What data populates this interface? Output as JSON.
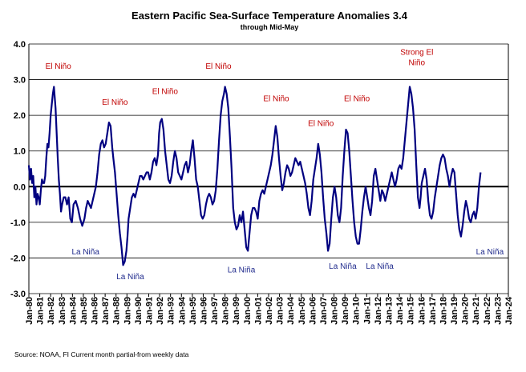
{
  "chart_data": {
    "type": "line",
    "title": "Eastern Pacific Sea-Surface Temperature Anomalies 3.4",
    "subtitle": "through Mid-May",
    "xlabel": "",
    "ylabel": "",
    "ylim": [
      -3.0,
      4.0
    ],
    "yticks": [
      "4.0",
      "3.0",
      "2.0",
      "1.0",
      "0.0",
      "-1.0",
      "-2.0",
      "-3.0"
    ],
    "xticks": [
      "Jan-80",
      "Jan-81",
      "Jan-82",
      "Jan-83",
      "Jan-84",
      "Jan-85",
      "Jan-86",
      "Jan-87",
      "Jan-88",
      "Jan-89",
      "Jan-90",
      "Jan-91",
      "Jan-92",
      "Jan-93",
      "Jan-94",
      "Jan-95",
      "Jan-96",
      "Jan-97",
      "Jan-98",
      "Jan-99",
      "Jan-00",
      "Jan-01",
      "Jan-02",
      "Jan-03",
      "Jan-04",
      "Jan-05",
      "Jan-06",
      "Jan-07",
      "Jan-08",
      "Jan-09",
      "Jan-10",
      "Jan-11",
      "Jan-12",
      "Jan-13",
      "Jan-14",
      "Jan-15",
      "Jan-16",
      "Jan-17",
      "Jan-18",
      "Jan-19",
      "Jan-20",
      "Jan-21",
      "Jan-22",
      "Jan-23",
      "Jan-24"
    ],
    "grid": true,
    "legend": "none",
    "series_color": "#000080",
    "series": [
      {
        "values_x_year": [
          1980.0,
          1980.1,
          1980.2,
          1980.3,
          1980.4,
          1980.5,
          1980.6,
          1980.7,
          1980.8,
          1980.9,
          1981.0,
          1981.1,
          1981.2,
          1981.3,
          1981.4,
          1981.5,
          1981.6,
          1981.7,
          1981.8,
          1981.9,
          1982.0,
          1982.1,
          1982.2,
          1982.3,
          1982.45,
          1982.55,
          1982.65,
          1982.75,
          1982.85,
          1982.95,
          1983.05,
          1983.2,
          1983.35,
          1983.5,
          1983.65,
          1983.8,
          1983.95,
          1984.1,
          1984.3,
          1984.5,
          1984.7,
          1984.9,
          1985.1,
          1985.25,
          1985.4,
          1985.55,
          1985.7,
          1985.85,
          1986.0,
          1986.15,
          1986.3,
          1986.45,
          1986.6,
          1986.75,
          1986.9,
          1987.05,
          1987.2,
          1987.35,
          1987.5,
          1987.65,
          1987.75,
          1987.9,
          1988.05,
          1988.2,
          1988.35,
          1988.5,
          1988.65,
          1988.8,
          1988.95,
          1989.05,
          1989.15,
          1989.3,
          1989.45,
          1989.6,
          1989.75,
          1989.9,
          1990.05,
          1990.2,
          1990.35,
          1990.5,
          1990.65,
          1990.8,
          1990.95,
          1991.1,
          1991.25,
          1991.4,
          1991.55,
          1991.7,
          1991.85,
          1991.95,
          1992.05,
          1992.2,
          1992.35,
          1992.5,
          1992.65,
          1992.8,
          1992.95,
          1993.1,
          1993.25,
          1993.4,
          1993.55,
          1993.7,
          1993.85,
          1994.0,
          1994.15,
          1994.3,
          1994.45,
          1994.6,
          1994.75,
          1994.9,
          1995.05,
          1995.2,
          1995.35,
          1995.5,
          1995.65,
          1995.8,
          1995.95,
          1996.1,
          1996.25,
          1996.4,
          1996.55,
          1996.7,
          1996.85,
          1997.0,
          1997.15,
          1997.3,
          1997.45,
          1997.6,
          1997.75,
          1997.9,
          1998.0,
          1998.15,
          1998.3,
          1998.45,
          1998.6,
          1998.75,
          1998.9,
          1999.05,
          1999.2,
          1999.35,
          1999.5,
          1999.65,
          1999.8,
          1999.95,
          2000.1,
          2000.25,
          2000.4,
          2000.55,
          2000.7,
          2000.85,
          2001.0,
          2001.15,
          2001.3,
          2001.45,
          2001.6,
          2001.75,
          2001.9,
          2002.05,
          2002.2,
          2002.35,
          2002.5,
          2002.65,
          2002.8,
          2002.95,
          2003.1,
          2003.25,
          2003.4,
          2003.55,
          2003.7,
          2003.85,
          2004.0,
          2004.15,
          2004.3,
          2004.45,
          2004.6,
          2004.75,
          2004.9,
          2005.05,
          2005.2,
          2005.35,
          2005.5,
          2005.65,
          2005.8,
          2005.95,
          2006.1,
          2006.25,
          2006.4,
          2006.55,
          2006.7,
          2006.85,
          2007.0,
          2007.15,
          2007.3,
          2007.45,
          2007.6,
          2007.75,
          2007.9,
          2008.05,
          2008.2,
          2008.35,
          2008.5,
          2008.65,
          2008.8,
          2008.95,
          2009.1,
          2009.25,
          2009.4,
          2009.55,
          2009.7,
          2009.85,
          2010.0,
          2010.15,
          2010.3,
          2010.45,
          2010.6,
          2010.75,
          2010.9,
          2011.05,
          2011.2,
          2011.35,
          2011.5,
          2011.65,
          2011.8,
          2011.95,
          2012.1,
          2012.25,
          2012.4,
          2012.55,
          2012.7,
          2012.85,
          2013.0,
          2013.15,
          2013.3,
          2013.45,
          2013.6,
          2013.75,
          2013.9,
          2014.05,
          2014.2,
          2014.35,
          2014.5,
          2014.65,
          2014.8,
          2014.95,
          2015.1,
          2015.25,
          2015.4,
          2015.55,
          2015.7,
          2015.85,
          2015.95,
          2016.05,
          2016.2,
          2016.35,
          2016.5,
          2016.65,
          2016.8,
          2016.95,
          2017.1,
          2017.25,
          2017.4,
          2017.55,
          2017.7,
          2017.85,
          2018.0,
          2018.15,
          2018.3,
          2018.45,
          2018.6,
          2018.75,
          2018.9,
          2019.05,
          2019.2,
          2019.35,
          2019.5,
          2019.65,
          2019.8,
          2019.95,
          2020.1,
          2020.25,
          2020.4,
          2020.55,
          2020.7,
          2020.85,
          2021.0,
          2021.15,
          2021.3,
          2021.45,
          2021.6,
          2021.75,
          2021.9,
          2022.05,
          2022.2,
          2022.35,
          2022.5,
          2022.65,
          2022.8,
          2022.95,
          2023.1,
          2023.25,
          2023.35
        ],
        "values": [
          0.6,
          0.2,
          0.5,
          0.1,
          0.3,
          -0.3,
          0.0,
          -0.5,
          -0.2,
          -0.3,
          -0.5,
          -0.1,
          0.2,
          0.1,
          0.1,
          0.3,
          0.8,
          1.2,
          1.1,
          1.5,
          2.0,
          2.3,
          2.6,
          2.8,
          2.2,
          1.5,
          0.8,
          0.2,
          -0.2,
          -0.7,
          -0.5,
          -0.3,
          -0.3,
          -0.5,
          -0.3,
          -0.9,
          -1.0,
          -0.5,
          -0.4,
          -0.6,
          -0.9,
          -1.1,
          -0.9,
          -0.6,
          -0.4,
          -0.5,
          -0.6,
          -0.4,
          -0.2,
          0.0,
          0.4,
          0.9,
          1.2,
          1.3,
          1.1,
          1.2,
          1.5,
          1.8,
          1.7,
          1.1,
          0.8,
          0.4,
          -0.2,
          -0.8,
          -1.3,
          -1.7,
          -2.2,
          -2.1,
          -1.8,
          -1.4,
          -0.9,
          -0.6,
          -0.3,
          -0.2,
          -0.3,
          -0.1,
          0.1,
          0.3,
          0.3,
          0.2,
          0.3,
          0.4,
          0.4,
          0.2,
          0.4,
          0.7,
          0.8,
          0.6,
          0.9,
          1.5,
          1.8,
          1.9,
          1.6,
          1.0,
          0.6,
          0.2,
          0.1,
          0.3,
          0.7,
          1.0,
          0.8,
          0.4,
          0.3,
          0.2,
          0.4,
          0.6,
          0.7,
          0.4,
          0.6,
          1.0,
          1.3,
          0.8,
          0.2,
          0.0,
          -0.4,
          -0.8,
          -0.9,
          -0.8,
          -0.5,
          -0.3,
          -0.2,
          -0.3,
          -0.5,
          -0.4,
          -0.1,
          0.5,
          1.3,
          2.0,
          2.4,
          2.6,
          2.8,
          2.6,
          2.2,
          1.4,
          0.5,
          -0.6,
          -1.0,
          -1.2,
          -1.1,
          -0.8,
          -1.0,
          -0.7,
          -1.2,
          -1.7,
          -1.8,
          -1.3,
          -0.8,
          -0.6,
          -0.6,
          -0.7,
          -0.9,
          -0.4,
          -0.2,
          -0.1,
          -0.2,
          0.0,
          0.2,
          0.4,
          0.6,
          0.9,
          1.3,
          1.7,
          1.4,
          0.8,
          0.3,
          -0.1,
          0.1,
          0.4,
          0.6,
          0.5,
          0.3,
          0.4,
          0.6,
          0.8,
          0.7,
          0.6,
          0.7,
          0.5,
          0.3,
          0.1,
          -0.2,
          -0.6,
          -0.8,
          -0.4,
          0.2,
          0.5,
          0.8,
          1.2,
          0.9,
          0.4,
          -0.3,
          -0.9,
          -1.3,
          -1.8,
          -1.6,
          -0.9,
          -0.3,
          0.0,
          -0.3,
          -0.8,
          -1.0,
          -0.6,
          0.3,
          1.0,
          1.6,
          1.5,
          1.0,
          0.3,
          -0.4,
          -1.0,
          -1.4,
          -1.6,
          -1.6,
          -1.2,
          -0.7,
          -0.3,
          0.0,
          -0.3,
          -0.6,
          -0.8,
          -0.4,
          0.3,
          0.5,
          0.2,
          -0.1,
          -0.4,
          -0.1,
          -0.2,
          -0.4,
          -0.2,
          0.0,
          0.2,
          0.4,
          0.2,
          0.0,
          0.2,
          0.5,
          0.6,
          0.5,
          0.8,
          1.3,
          1.8,
          2.3,
          2.8,
          2.6,
          2.2,
          1.6,
          0.6,
          -0.3,
          -0.6,
          -0.3,
          0.1,
          0.3,
          0.5,
          0.2,
          -0.4,
          -0.8,
          -0.9,
          -0.7,
          -0.3,
          0.0,
          0.3,
          0.6,
          0.8,
          0.9,
          0.8,
          0.5,
          0.3,
          0.0,
          0.3,
          0.5,
          0.4,
          -0.2,
          -0.8,
          -1.2,
          -1.4,
          -1.1,
          -0.7,
          -0.4,
          -0.6,
          -0.9,
          -1.0,
          -0.8,
          -0.7,
          -0.9,
          -0.6,
          0.0,
          0.4
        ]
      }
    ],
    "annotations_nino": [
      {
        "text": "El Niño",
        "x": 1982.7,
        "y": 3.3
      },
      {
        "text": "El Niño",
        "x": 1987.9,
        "y": 2.3
      },
      {
        "text": "El Niño",
        "x": 1992.5,
        "y": 2.6
      },
      {
        "text": "El Niño",
        "x": 1997.4,
        "y": 3.3
      },
      {
        "text": "El Niño",
        "x": 2002.7,
        "y": 2.4
      },
      {
        "text": "El Niño",
        "x": 2006.8,
        "y": 1.7
      },
      {
        "text": "El Niño",
        "x": 2010.1,
        "y": 2.4
      },
      {
        "text": "Strong El",
        "x": 2015.6,
        "y": 3.7
      },
      {
        "text": "Niño",
        "x": 2015.6,
        "y": 3.4
      }
    ],
    "annotations_nina": [
      {
        "text": "La Niña",
        "x": 1985.2,
        "y": -1.9
      },
      {
        "text": "La Niña",
        "x": 1989.3,
        "y": -2.6
      },
      {
        "text": "La Niña",
        "x": 1999.5,
        "y": -2.4
      },
      {
        "text": "La Niña",
        "x": 2008.8,
        "y": -2.3
      },
      {
        "text": "La Niña",
        "x": 2012.2,
        "y": -2.3
      },
      {
        "text": "La Niña",
        "x": 2022.3,
        "y": -1.9
      }
    ],
    "footer": "Source: NOAA, FI     Current month partial-from weekly data"
  }
}
